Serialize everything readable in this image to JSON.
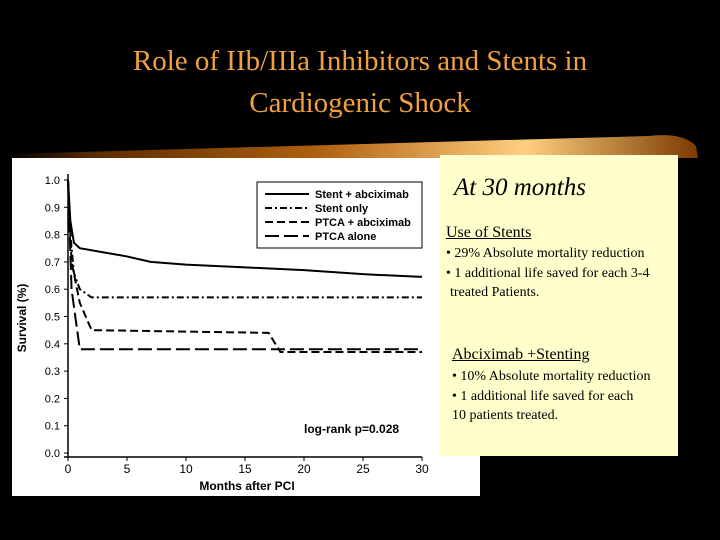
{
  "slide": {
    "title_line1": "Role of IIb/IIIa Inhibitors and Stents in",
    "title_line2": "Cardiogenic Shock",
    "colors": {
      "background": "#000000",
      "title": "#f0a040",
      "panel": "#ffffcc",
      "bar_bright": "#ffd080",
      "bar_dark": "#5a2a00"
    }
  },
  "panel": {
    "heading": "At 30 months",
    "section1_title": "Use of Stents",
    "section1_line1": "• 29% Absolute mortality reduction",
    "section1_line2": "• 1 additional life saved for each 3-4",
    "section1_line3": "treated Patients.",
    "section2_title": "Abciximab +Stenting",
    "section2_line1": "• 10% Absolute mortality reduction",
    "section2_line2": "• 1 additional life saved for each",
    "section2_line3": "10 patients treated."
  },
  "chart_data": {
    "type": "line",
    "xlabel": "Months after PCI",
    "ylabel": "Survival (%)",
    "xlim": [
      0,
      30
    ],
    "ylim": [
      0,
      1
    ],
    "xticks": [
      0,
      5,
      10,
      15,
      20,
      25,
      30
    ],
    "yticks": [
      "0.0",
      "0.1",
      "0.2",
      "0.3",
      "0.4",
      "0.5",
      "0.6",
      "0.7",
      "0.8",
      "0.9",
      "1.0"
    ],
    "annotation": "log-rank p=0.028",
    "legend_position": "top-right",
    "series": [
      {
        "name": "Stent + abciximab",
        "dash": "solid",
        "x": [
          0,
          0.2,
          0.5,
          1,
          5,
          7,
          10,
          15,
          20,
          25,
          30
        ],
        "y": [
          1.0,
          0.85,
          0.77,
          0.75,
          0.72,
          0.7,
          0.69,
          0.68,
          0.67,
          0.655,
          0.645
        ]
      },
      {
        "name": "Stent only",
        "dash": "dashdot",
        "x": [
          0,
          0.2,
          0.5,
          1,
          2,
          30
        ],
        "y": [
          1.0,
          0.8,
          0.66,
          0.6,
          0.57,
          0.57
        ]
      },
      {
        "name": "PTCA + abciximab",
        "dash": "dashed",
        "x": [
          0,
          0.3,
          1,
          2,
          17,
          18,
          30
        ],
        "y": [
          1.0,
          0.7,
          0.55,
          0.45,
          0.44,
          0.37,
          0.37
        ]
      },
      {
        "name": "PTCA alone",
        "dash": "longdash",
        "x": [
          0,
          0.3,
          1,
          3,
          30
        ],
        "y": [
          1.0,
          0.6,
          0.38,
          0.38,
          0.38
        ]
      }
    ]
  }
}
